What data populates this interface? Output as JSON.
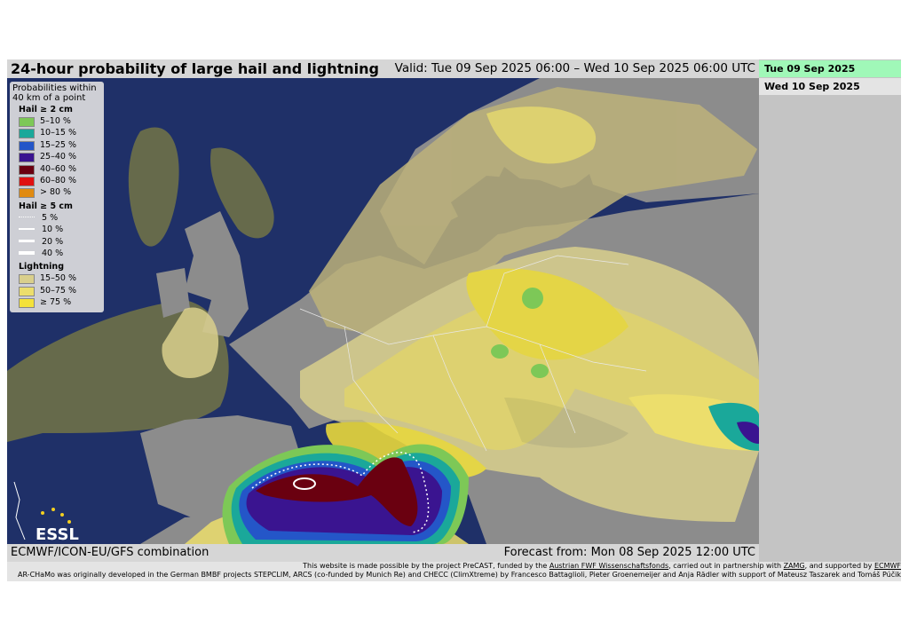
{
  "header": {
    "title": "24-hour probability of large hail and lightning",
    "valid": "Valid: Tue 09 Sep 2025 06:00 – Wed 10 Sep 2025 06:00 UTC"
  },
  "dates": [
    "Tue 09 Sep 2025",
    "Wed 10 Sep 2025"
  ],
  "legend": {
    "title_lines": [
      "Probabilities within",
      "40 km of a point"
    ],
    "hail2": {
      "heading": "Hail ≥ 2 cm",
      "items": [
        {
          "label": "5–10 %",
          "color": "#7dc857"
        },
        {
          "label": "10–15 %",
          "color": "#1aa89a"
        },
        {
          "label": "15–25 %",
          "color": "#2456c8"
        },
        {
          "label": "25–40 %",
          "color": "#3a1490"
        },
        {
          "label": "40–60 %",
          "color": "#6a0010"
        },
        {
          "label": "60–80 %",
          "color": "#e01010"
        },
        {
          "label": "> 80 %",
          "color": "#e08a10"
        }
      ]
    },
    "hail5": {
      "heading": "Hail ≥ 5 cm",
      "items": [
        "5 %",
        "10 %",
        "20 %",
        "40 %"
      ]
    },
    "lightning": {
      "heading": "Lightning",
      "items": [
        {
          "label": "15–50 %",
          "color": "#d9cf8c"
        },
        {
          "label": "50–75 %",
          "color": "#ecde6c"
        },
        {
          "label": "≥ 75 %",
          "color": "#f4e23a"
        }
      ]
    }
  },
  "logo": "ESSL",
  "footer": {
    "model": "ECMWF/ICON-EU/GFS combination",
    "forecast": "Forecast from: Mon 08 Sep 2025 12:00 UTC",
    "credit1": [
      "This website is made possible by the project PreCAST, funded by the ",
      "Austrian FWF Wissenschaftsfonds",
      ", carried out in partnership with ",
      "ZAMG",
      ", and supported by ",
      "ECMWF"
    ],
    "credit2": "AR-CHaMo was originally developed in the German BMBF projects STEPCLIM, ARCS (co-funded by Munich Re) and CHECC (ClimXtreme) by Francesco Battaglioli, Pieter Groenemeijer and Anja Rädler with support of Mateusz Taszarek and Tomáš Púčik"
  }
}
